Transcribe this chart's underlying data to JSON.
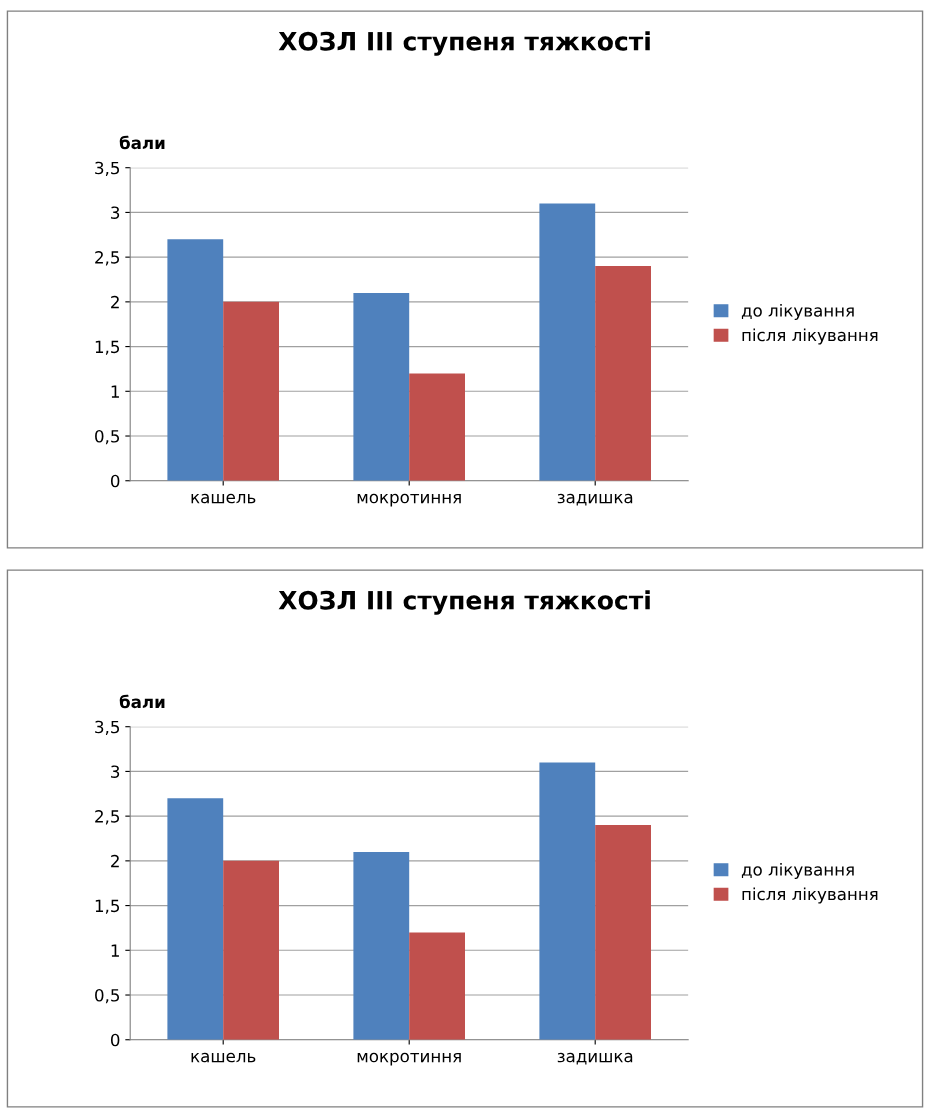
{
  "chart_data": [
    {
      "type": "bar",
      "title": "ХОЗЛ III ступеня тяжкості",
      "ylabel": "бали",
      "categories": [
        "кашель",
        "мокротиння",
        "задишка"
      ],
      "series": [
        {
          "name": "до лікування",
          "color": "#4f81bd",
          "values": [
            2.7,
            2.1,
            3.1
          ]
        },
        {
          "name": "після лікування",
          "color": "#c0504d",
          "values": [
            2.0,
            1.2,
            2.4
          ]
        }
      ],
      "ylim": [
        0,
        3.5
      ],
      "yticks": [
        0,
        {
          "value": 0.5,
          "label": "0,5"
        },
        1,
        {
          "value": 1.5,
          "label": "1,5"
        },
        2,
        {
          "value": 2.5,
          "label": "2,5"
        },
        3,
        {
          "value": 3.5,
          "label": "3,5"
        }
      ],
      "grid": "y",
      "legend": "right"
    },
    {
      "type": "bar",
      "title": "ХОЗЛ III ступеня тяжкості",
      "ylabel": "бали",
      "categories": [
        "кашель",
        "мокротиння",
        "задишка"
      ],
      "series": [
        {
          "name": "до лікування",
          "color": "#4f81bd",
          "values": [
            2.7,
            2.1,
            3.1
          ]
        },
        {
          "name": "після лікування",
          "color": "#c0504d",
          "values": [
            2.0,
            1.2,
            2.4
          ]
        }
      ],
      "ylim": [
        0,
        3.5
      ],
      "yticks": [
        0,
        {
          "value": 0.5,
          "label": "0,5"
        },
        1,
        {
          "value": 1.5,
          "label": "1,5"
        },
        2,
        {
          "value": 2.5,
          "label": "2,5"
        },
        3,
        {
          "value": 3.5,
          "label": "3,5"
        }
      ],
      "grid": "y",
      "legend": "right"
    }
  ]
}
